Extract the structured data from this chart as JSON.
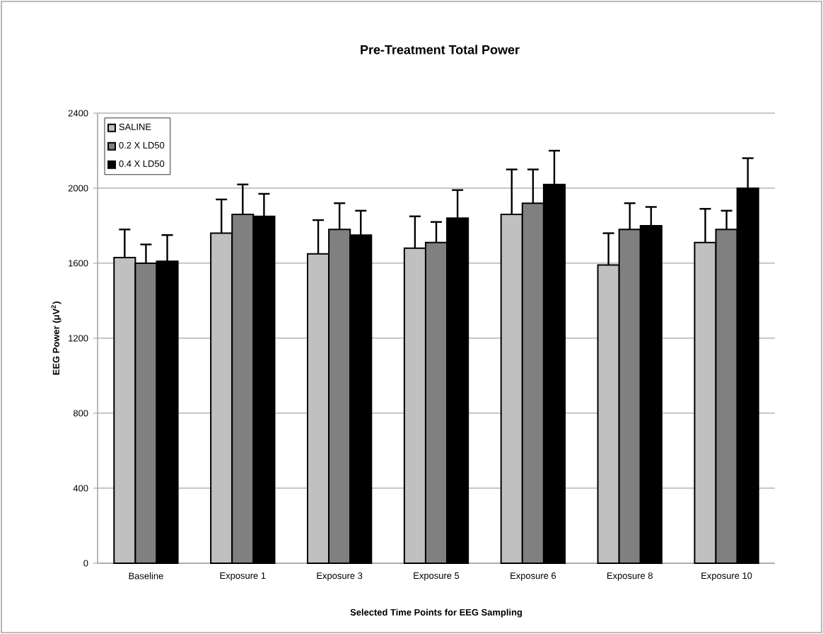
{
  "chart_data": {
    "type": "bar",
    "title": "Pre-Treatment Total Power",
    "xlabel": "Selected Time Points for EEG Sampling",
    "ylabel": "EEG Power (μV$^{2}$)",
    "categories": [
      "Baseline",
      "Exposure 1",
      "Exposure 3",
      "Exposure 5",
      "Exposure 6",
      "Exposure 8",
      "Exposure 10"
    ],
    "series": [
      {
        "name": "SALINE",
        "color": "#c0c0c0",
        "values": [
          1630,
          1760,
          1650,
          1680,
          1860,
          1590,
          1710
        ],
        "errors": [
          [
            1630,
            1780
          ],
          [
            1760,
            1940
          ],
          [
            1650,
            1830
          ],
          [
            1680,
            1850
          ],
          [
            1860,
            2100
          ],
          [
            1590,
            1760
          ],
          [
            1710,
            1890
          ]
        ]
      },
      {
        "name": "0.2 X LD50",
        "color": "#808080",
        "values": [
          1600,
          1860,
          1780,
          1710,
          1920,
          1780,
          1780
        ],
        "errors": [
          [
            1600,
            1700
          ],
          [
            1860,
            2020
          ],
          [
            1780,
            1920
          ],
          [
            1710,
            1820
          ],
          [
            1920,
            2100
          ],
          [
            1780,
            1920
          ],
          [
            1780,
            1880
          ]
        ]
      },
      {
        "name": "0.4 X LD50",
        "color": "#000000",
        "values": [
          1610,
          1850,
          1750,
          1840,
          2020,
          1800,
          2000
        ],
        "errors": [
          [
            1610,
            1750
          ],
          [
            1850,
            1970
          ],
          [
            1750,
            1880
          ],
          [
            1840,
            1990
          ],
          [
            2020,
            2200
          ],
          [
            1800,
            1900
          ],
          [
            2000,
            2160
          ]
        ]
      }
    ],
    "ylim": [
      0,
      2400
    ],
    "yticks": [
      0,
      400,
      800,
      1200,
      1600,
      2000,
      2400
    ],
    "grid": "y",
    "legend": "top left"
  }
}
